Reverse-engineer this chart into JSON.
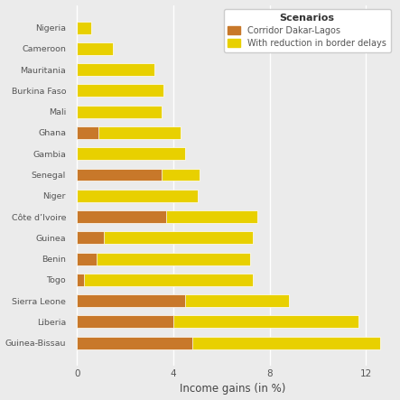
{
  "countries": [
    "Nigeria",
    "Cameroon",
    "Mauritania",
    "Burkina Faso",
    "Mali",
    "Ghana",
    "Gambia",
    "Senegal",
    "Niger",
    "Côte d’Ivoire",
    "Guinea",
    "Benin",
    "Togo",
    "Sierra Leone",
    "Liberia",
    "Guinea-Bissau"
  ],
  "corridor": [
    0.0,
    0.0,
    0.0,
    0.0,
    0.0,
    0.9,
    0.0,
    3.5,
    0.0,
    3.7,
    1.1,
    0.8,
    0.3,
    4.5,
    4.0,
    4.8
  ],
  "border": [
    0.6,
    1.5,
    3.2,
    3.6,
    3.5,
    4.3,
    4.5,
    5.1,
    5.0,
    7.5,
    7.3,
    7.2,
    7.3,
    8.8,
    11.7,
    12.6
  ],
  "color_corridor": "#C8782A",
  "color_border": "#E8D000",
  "bg_color": "#EBEBEB",
  "grid_color": "#FFFFFF",
  "xlabel": "Income gains (in %)",
  "legend_title": "Scenarios",
  "legend_label_1": "Corridor Dakar-Lagos",
  "legend_label_2": "With reduction in border delays",
  "xlim": [
    -0.3,
    13.2
  ],
  "xticks": [
    0,
    4,
    8,
    12
  ]
}
